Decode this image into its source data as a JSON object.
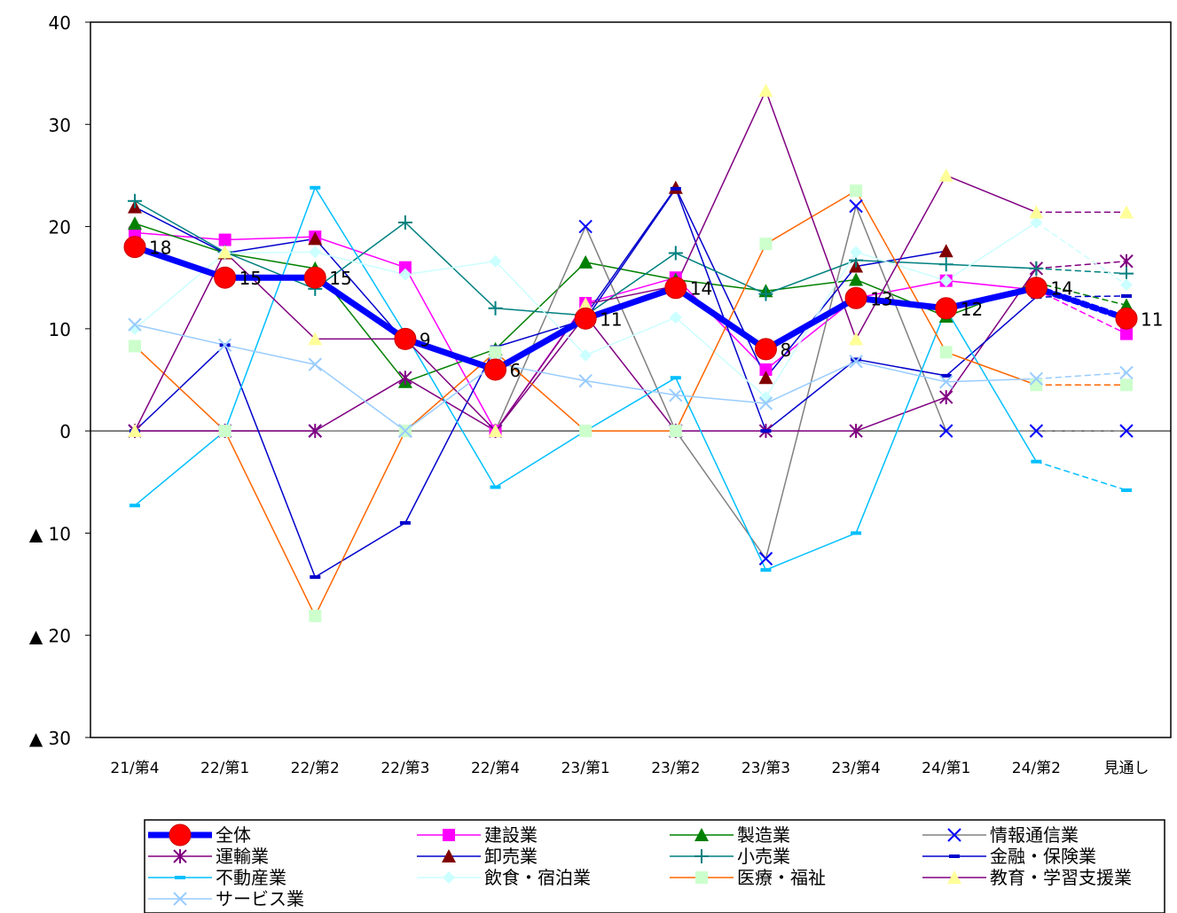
{
  "chart_data": {
    "type": "line",
    "categories": [
      "21/第4",
      "22/第1",
      "22/第2",
      "22/第3",
      "22/第4",
      "23/第1",
      "23/第2",
      "23/第3",
      "23/第4",
      "24/第1",
      "24/第2",
      "見通し"
    ],
    "ylim": [
      -30,
      40
    ],
    "y_ticks": [
      {
        "value": 40,
        "label": "40"
      },
      {
        "value": 30,
        "label": "30"
      },
      {
        "value": 20,
        "label": "20"
      },
      {
        "value": 10,
        "label": "10"
      },
      {
        "value": 0,
        "label": "0"
      },
      {
        "value": -10,
        "label": "▲ 10"
      },
      {
        "value": -20,
        "label": "▲ 20"
      },
      {
        "value": -30,
        "label": "▲ 30"
      }
    ],
    "grid": false,
    "legend_position": "bottom",
    "forecast_dashed_last_segment": true,
    "series": [
      {
        "name": "全体",
        "color": "#0000FF",
        "marker": "circle-red",
        "width": 7,
        "values": [
          18,
          15,
          15,
          9,
          6,
          11,
          14,
          8,
          13,
          12,
          14,
          11
        ],
        "labels": [
          "18",
          "15",
          "15",
          "9",
          "6",
          "11",
          "14",
          "8",
          "13",
          "12",
          "14",
          "11"
        ]
      },
      {
        "name": "建設業",
        "color": "#FF00FF",
        "marker": "square",
        "width": 1.5,
        "values": [
          19.4,
          18.7,
          19,
          16,
          0,
          12.5,
          15,
          6,
          13,
          14.7,
          13.8,
          9.5
        ]
      },
      {
        "name": "製造業",
        "color": "#008000",
        "marker": "triangle",
        "width": 1.5,
        "values": [
          20.3,
          17.4,
          15.9,
          4.8,
          8,
          16.5,
          14.8,
          13.7,
          14.8,
          11.2,
          14.5,
          12.3
        ]
      },
      {
        "name": "情報通信業",
        "color": "#808080",
        "marker": "x-blue",
        "width": 1.5,
        "values": [
          0,
          0,
          0,
          0,
          0,
          20,
          0,
          -12.5,
          22,
          0,
          0,
          0
        ]
      },
      {
        "name": "運輸業",
        "color": "#800080",
        "marker": "asterisk",
        "width": 1.5,
        "values": [
          0,
          0,
          0,
          5.2,
          0,
          11.3,
          0,
          0,
          0,
          3.3,
          15.9,
          16.6
        ]
      },
      {
        "name": "卸売業",
        "color": "#0000CC",
        "marker": "triangle-darkred",
        "width": 1.5,
        "values": [
          21.9,
          17.4,
          18.8,
          8.7,
          6.1,
          11.3,
          23.8,
          5.2,
          16.1,
          17.6,
          null,
          null
        ]
      },
      {
        "name": "小売業",
        "color": "#008080",
        "marker": "plus",
        "width": 1.5,
        "values": [
          22.5,
          17.5,
          13.9,
          20.4,
          12,
          11.3,
          17.4,
          13.4,
          16.7,
          16.3,
          15.9,
          15.4
        ]
      },
      {
        "name": "金融・保険業",
        "color": "#0000CC",
        "marker": "dash",
        "width": 1.5,
        "values": [
          0,
          8.4,
          -14.3,
          -9,
          8.2,
          10.9,
          23.7,
          0,
          7,
          5.4,
          13.1,
          13.2
        ]
      },
      {
        "name": "不動産業",
        "color": "#00BFFF",
        "marker": "dash",
        "width": 1.5,
        "values": [
          -7.3,
          0,
          23.8,
          9.5,
          -5.5,
          0,
          5.2,
          -13.6,
          -10,
          11.9,
          -3,
          -5.8
        ]
      },
      {
        "name": "飲食・宿泊業",
        "color": "#CCFFFF",
        "marker": "diamond",
        "width": 1.5,
        "values": [
          10,
          17.4,
          17.5,
          15.3,
          16.6,
          7.4,
          11.1,
          3.3,
          17.5,
          14.7,
          20.4,
          14.3
        ]
      },
      {
        "name": "医療・福祉",
        "color": "#FF6600",
        "marker": "square-lightgreen",
        "width": 1.5,
        "values": [
          8.3,
          0,
          -18.1,
          0,
          7.7,
          0,
          0,
          18.3,
          23.5,
          7.7,
          4.5,
          4.5
        ]
      },
      {
        "name": "教育・学習支援業",
        "color": "#800080",
        "marker": "triangle-yellow",
        "width": 1.5,
        "values": [
          0,
          17.5,
          9,
          9,
          0,
          12.4,
          14.2,
          33.3,
          9,
          25,
          21.4,
          21.4
        ]
      },
      {
        "name": "サービス業",
        "color": "#99CCFF",
        "marker": "x",
        "width": 1.5,
        "values": [
          10.4,
          8.4,
          6.5,
          0,
          6.6,
          4.9,
          3.5,
          2.7,
          6.8,
          4.8,
          5.1,
          5.7
        ]
      }
    ]
  }
}
